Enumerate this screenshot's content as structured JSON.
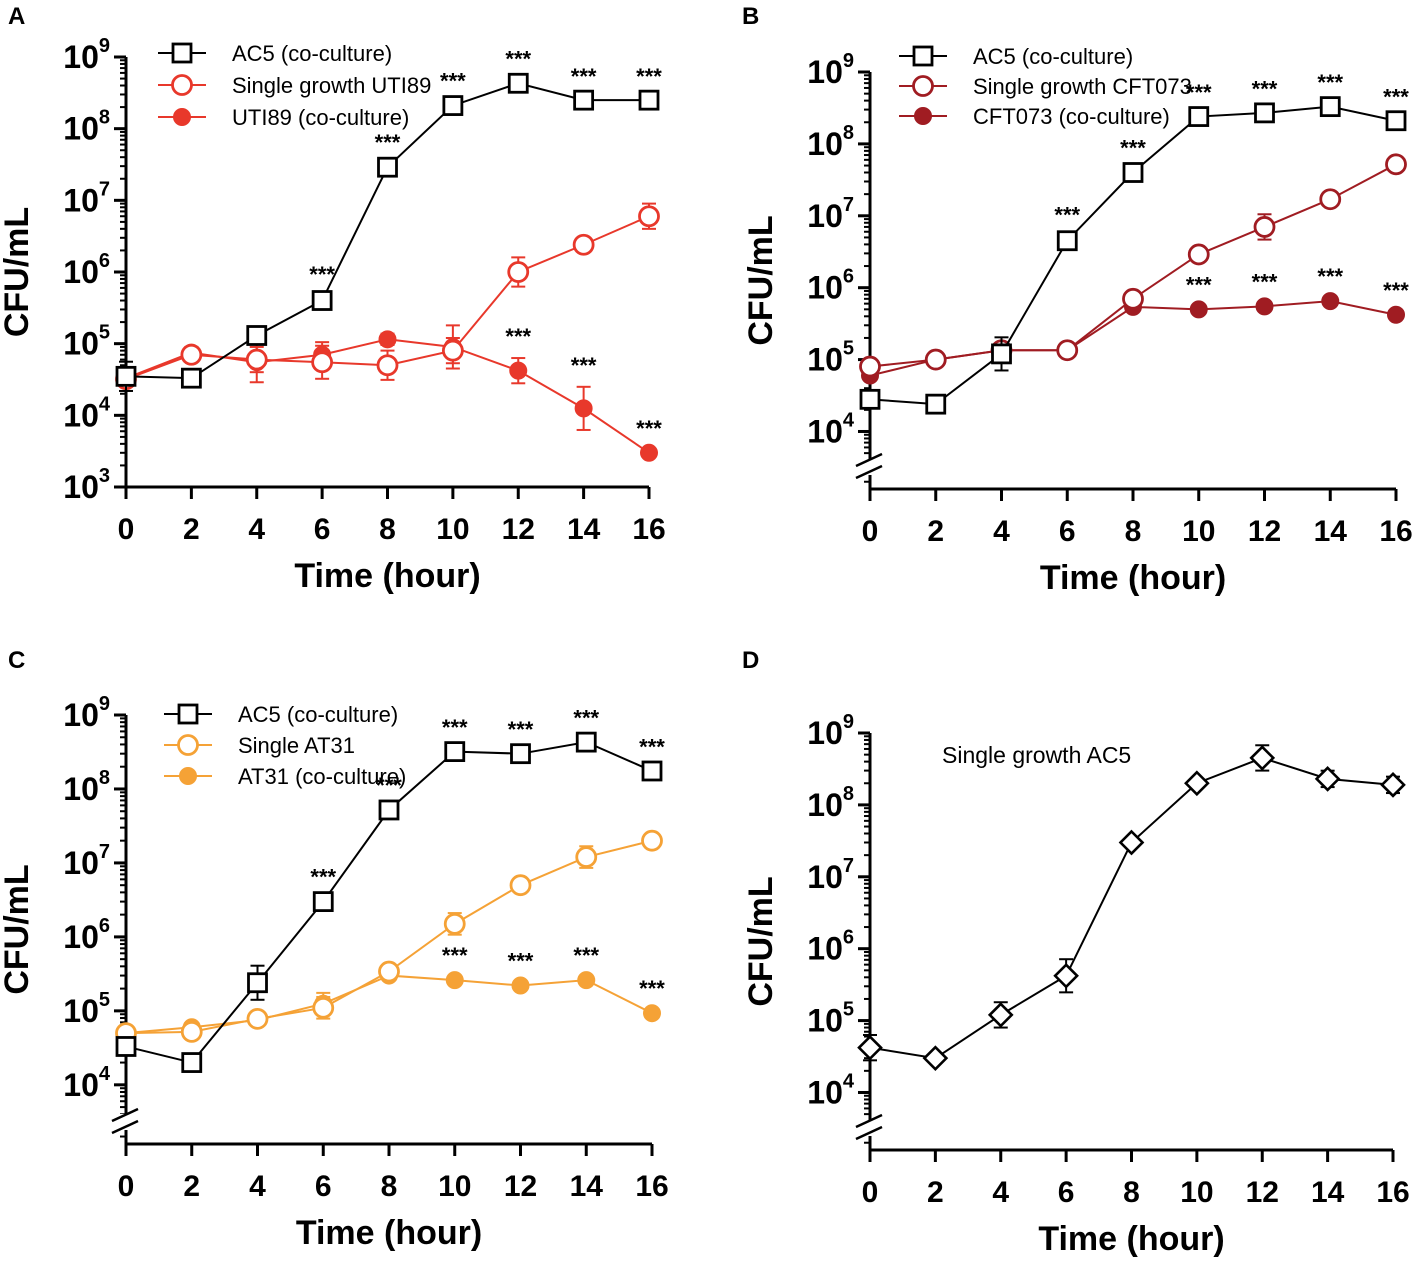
{
  "chart_data": [
    {
      "panel": "A",
      "type": "line",
      "xlabel": "Time (hour)",
      "ylabel": "CFU/mL",
      "x": [
        0,
        2,
        4,
        6,
        8,
        10,
        12,
        14,
        16
      ],
      "xticks": [
        "0",
        "2",
        "4",
        "6",
        "8",
        "10",
        "12",
        "14",
        "16"
      ],
      "yscale": "log",
      "ylim_exp": [
        3,
        9
      ],
      "ytick_base": "10",
      "yticks_exp": [
        "3",
        "4",
        "5",
        "6",
        "7",
        "8",
        "9"
      ],
      "axis_break": false,
      "legend": "top-left",
      "series": [
        {
          "name": "AC5 (co-culture)",
          "marker": "square-open",
          "color": "#000000",
          "values": [
            35000,
            33000,
            130000,
            400000,
            29000000,
            210000000,
            430000000,
            250000000,
            250000000
          ],
          "err_up": [
            1.6,
            1.1,
            1.15,
            1.15,
            1.1,
            1.1,
            1.1,
            1.08,
            1.08
          ],
          "stars": [
            "",
            "",
            "",
            "***",
            "***",
            "***",
            "***",
            "***",
            "***"
          ]
        },
        {
          "name": "Single growth UTI89",
          "marker": "circle-open",
          "color": "#e8382b",
          "values": [
            32000,
            70000,
            60000,
            55000,
            50000,
            80000,
            1000000,
            2400000,
            6000000
          ],
          "err_up": [
            1.2,
            1.25,
            1.5,
            1.7,
            1.6,
            1.5,
            1.6,
            1.15,
            1.5
          ],
          "stars": [
            "",
            "",
            "",
            "",
            "",
            "",
            "",
            "",
            ""
          ]
        },
        {
          "name": "UTI89 (co-culture)",
          "marker": "circle-filled",
          "color": "#e8382b",
          "values": [
            33000,
            75000,
            55000,
            70000,
            115000,
            90000,
            42000,
            12500,
            3000
          ],
          "err_up": [
            1.2,
            1.2,
            1.9,
            1.5,
            1.2,
            2.0,
            1.5,
            2.0,
            1.1
          ],
          "stars": [
            "",
            "",
            "",
            "",
            "",
            "",
            "***",
            "***",
            "***"
          ]
        }
      ]
    },
    {
      "panel": "B",
      "type": "line",
      "xlabel": "Time (hour)",
      "ylabel": "CFU/mL",
      "x": [
        0,
        2,
        4,
        6,
        8,
        10,
        12,
        14,
        16
      ],
      "xticks": [
        "0",
        "2",
        "4",
        "6",
        "8",
        "10",
        "12",
        "14",
        "16"
      ],
      "yscale": "log",
      "ylim_exp": [
        3.2,
        9
      ],
      "ytick_base": "10",
      "yticks_exp": [
        "4",
        "5",
        "6",
        "7",
        "8",
        "9"
      ],
      "axis_break": true,
      "legend": "top-left",
      "series": [
        {
          "name": "AC5 (co-culture)",
          "marker": "square-open",
          "color": "#000000",
          "values": [
            28000,
            24000,
            120000,
            4500000,
            40000000,
            240000000,
            270000000,
            330000000,
            210000000
          ],
          "err_up": [
            1.2,
            1.1,
            1.7,
            1.15,
            1.1,
            1.08,
            1.08,
            1.08,
            1.08
          ],
          "stars": [
            "",
            "",
            "",
            "***",
            "***",
            "***",
            "***",
            "***",
            "***"
          ]
        },
        {
          "name": "Single growth CFT073",
          "marker": "circle-open",
          "color": "#a01c22",
          "values": [
            80000,
            100000,
            135000,
            135000,
            700000,
            2900000,
            7000000,
            17000000,
            52000000
          ],
          "err_up": [
            1.1,
            1.1,
            1.1,
            1.1,
            1.1,
            1.1,
            1.5,
            1.1,
            1.1
          ],
          "stars": [
            "",
            "",
            "",
            "",
            "",
            "",
            "",
            "",
            ""
          ]
        },
        {
          "name": "CFT073 (co-culture)",
          "marker": "circle-filled",
          "color": "#a01c22",
          "values": [
            60000,
            100000,
            135000,
            135000,
            540000,
            500000,
            550000,
            650000,
            420000
          ],
          "err_up": [
            1.1,
            1.1,
            1.1,
            1.1,
            1.1,
            1.1,
            1.1,
            1.1,
            1.1
          ],
          "stars": [
            "",
            "",
            "",
            "",
            "",
            "***",
            "***",
            "***",
            "***"
          ]
        }
      ]
    },
    {
      "panel": "C",
      "type": "line",
      "xlabel": "Time (hour)",
      "ylabel": "CFU/mL",
      "x": [
        0,
        2,
        4,
        6,
        8,
        10,
        12,
        14,
        16
      ],
      "xticks": [
        "0",
        "2",
        "4",
        "6",
        "8",
        "10",
        "12",
        "14",
        "16"
      ],
      "yscale": "log",
      "ylim_exp": [
        3.2,
        9
      ],
      "ytick_base": "10",
      "yticks_exp": [
        "4",
        "5",
        "6",
        "7",
        "8",
        "9"
      ],
      "axis_break": true,
      "legend": "top-left",
      "series": [
        {
          "name": "AC5 (co-culture)",
          "marker": "square-open",
          "color": "#000000",
          "values": [
            33000,
            20000,
            240000,
            3000000,
            52000000,
            320000000,
            300000000,
            430000000,
            175000000
          ],
          "err_up": [
            1.2,
            1.1,
            1.7,
            1.1,
            1.1,
            1.08,
            1.08,
            1.08,
            1.08
          ],
          "stars": [
            "",
            "",
            "",
            "***",
            "***",
            "***",
            "***",
            "***",
            "***"
          ]
        },
        {
          "name": "Single  AT31",
          "marker": "circle-open",
          "color": "#f5a236",
          "values": [
            50000,
            52000,
            78000,
            110000,
            340000,
            1500000,
            5000000,
            12000000,
            20000000
          ],
          "err_up": [
            1.1,
            1.1,
            1.1,
            1.4,
            1.1,
            1.4,
            1.1,
            1.4,
            1.1
          ],
          "stars": [
            "",
            "",
            "",
            "",
            "",
            "",
            "",
            "",
            ""
          ]
        },
        {
          "name": "AT31 (co-culture)",
          "marker": "circle-filled",
          "color": "#f5a236",
          "values": [
            50000,
            60000,
            75000,
            125000,
            300000,
            260000,
            220000,
            260000,
            93000
          ],
          "err_up": [
            1.1,
            1.1,
            1.1,
            1.4,
            1.1,
            1.1,
            1.1,
            1.1,
            1.1
          ],
          "stars": [
            "",
            "",
            "",
            "",
            "",
            "***",
            "***",
            "***",
            "***"
          ]
        }
      ]
    },
    {
      "panel": "D",
      "type": "line",
      "xlabel": "Time (hour)",
      "ylabel": "CFU/mL",
      "x": [
        0,
        2,
        4,
        6,
        8,
        10,
        12,
        14,
        16
      ],
      "xticks": [
        "0",
        "2",
        "4",
        "6",
        "8",
        "10",
        "12",
        "14",
        "16"
      ],
      "yscale": "log",
      "ylim_exp": [
        3.2,
        9
      ],
      "ytick_base": "10",
      "yticks_exp": [
        "4",
        "5",
        "6",
        "7",
        "8",
        "9"
      ],
      "axis_break": true,
      "annotation": "Single growth AC5",
      "series": [
        {
          "name": "Single growth AC5",
          "marker": "diamond-open",
          "color": "#000000",
          "values": [
            42000,
            30000,
            120000,
            420000,
            30000000,
            200000000,
            450000000,
            230000000,
            190000000
          ],
          "err_up": [
            1.5,
            1.1,
            1.5,
            1.7,
            1.1,
            1.1,
            1.5,
            1.3,
            1.3
          ],
          "stars": [
            "",
            "",
            "",
            "",
            "",
            "",
            "",
            "",
            ""
          ]
        }
      ]
    }
  ]
}
